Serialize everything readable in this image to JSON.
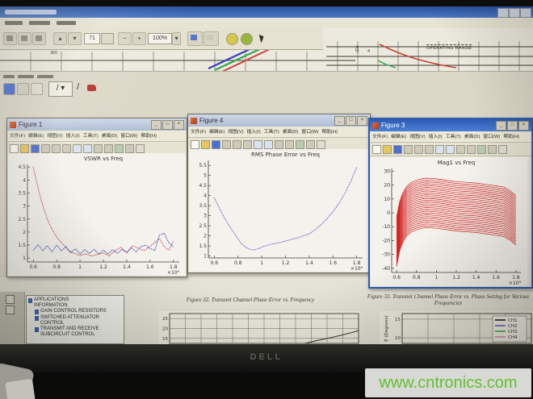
{
  "monitor": {
    "brand": "DELL"
  },
  "watermark": {
    "text": "www.cntronics.com"
  },
  "chrome": {
    "minimize": "_",
    "maximize": "□",
    "close": "×"
  },
  "pdf_reader": {
    "toolbar": {
      "page_value": "71",
      "zoom_value": "100%",
      "zoom_dropdown": "▾",
      "up_glyph": "▴",
      "down_glyph": "▾",
      "minus_glyph": "−",
      "plus_glyph": "+"
    },
    "doc_top": {
      "tick_label_left": "360",
      "rotated_axis_label": "(De",
      "axis_tick": "4",
      "operating_range": "OPERATING RANGE"
    },
    "bookmarks_root": "APPLICATIONS INFORMATION",
    "bookmarks_children": [
      "GAIN CONTROL RESISTORS",
      "SWITCHED ATTENUATOR CONTROL",
      "TRANSMIT AND RECEIVE SUBCIRCUIT CONTROL"
    ],
    "caption32": "Figure 32. Transmit Channel Phase Error vs. Frequency",
    "caption33": "Figure 33. Transmit Channel Phase Error vs. Phase Setting for Various Frequencies"
  },
  "matlab_menus": [
    "文件(F)",
    "编辑(E)",
    "视图(V)",
    "插入(I)",
    "工具(T)",
    "桌面(D)",
    "窗口(W)",
    "帮助(H)"
  ],
  "figure_windows": [
    {
      "title": "Figure 1"
    },
    {
      "title": "Figure 4"
    },
    {
      "title": "Figure 3"
    }
  ],
  "chart_data": [
    {
      "id": "vswr",
      "type": "line",
      "title": "VSWR vs Freq",
      "xlim": [
        0.55,
        1.85
      ],
      "ylim": [
        0.85,
        4.6
      ],
      "xticks": [
        0.6,
        0.8,
        1,
        1.2,
        1.4,
        1.6,
        1.8
      ],
      "xtick_labels": [
        "0.6",
        "0.8",
        "1",
        "1.2",
        "1.4",
        "1.6",
        "1.8"
      ],
      "yticks": [
        1,
        1.5,
        2,
        2.5,
        3,
        3.5,
        4,
        4.5
      ],
      "ytick_labels": [
        "1",
        "1.5",
        "2",
        "2.5",
        "3",
        "3.5",
        "4",
        "4.5"
      ],
      "x_exponent": "×10⁹",
      "grid": false,
      "box": false,
      "series": [
        {
          "name": "vswr-red",
          "color": "#c42626",
          "width": 1,
          "dash": "1,1",
          "x": [
            0.6,
            0.63,
            0.66,
            0.69,
            0.72,
            0.75,
            0.78,
            0.81,
            0.84,
            0.87,
            0.9,
            0.95,
            1.0,
            1.05,
            1.1,
            1.15,
            1.2,
            1.25,
            1.3,
            1.35,
            1.4,
            1.45,
            1.5,
            1.55,
            1.6,
            1.64,
            1.68,
            1.72,
            1.76,
            1.8
          ],
          "y": [
            4.5,
            3.9,
            3.35,
            2.9,
            2.5,
            2.2,
            1.95,
            1.75,
            1.6,
            1.45,
            1.3,
            1.18,
            1.1,
            1.16,
            1.08,
            1.14,
            1.2,
            1.08,
            1.28,
            1.42,
            1.22,
            1.48,
            1.38,
            1.28,
            1.45,
            1.6,
            1.75,
            1.45,
            1.3,
            1.65
          ]
        },
        {
          "name": "vswr-blue",
          "color": "#2626bb",
          "width": 1,
          "dash": "1,1",
          "x": [
            0.6,
            0.64,
            0.68,
            0.72,
            0.76,
            0.8,
            0.84,
            0.88,
            0.92,
            0.96,
            1.0,
            1.04,
            1.08,
            1.12,
            1.16,
            1.2,
            1.24,
            1.28,
            1.32,
            1.36,
            1.4,
            1.44,
            1.48,
            1.52,
            1.56,
            1.6,
            1.64,
            1.68,
            1.72,
            1.76,
            1.8
          ],
          "y": [
            1.3,
            1.52,
            1.28,
            1.48,
            1.24,
            1.5,
            1.28,
            1.44,
            1.2,
            1.36,
            1.16,
            1.32,
            1.18,
            1.34,
            1.16,
            1.3,
            1.16,
            1.32,
            1.18,
            1.34,
            1.2,
            1.4,
            1.24,
            1.44,
            1.5,
            1.36,
            1.3,
            1.88,
            1.95,
            1.6,
            1.42
          ]
        }
      ]
    },
    {
      "id": "rms_phase",
      "type": "line",
      "title": "RMS Phase Error vs Freq",
      "xlim": [
        0.55,
        1.85
      ],
      "ylim": [
        0.9,
        5.75
      ],
      "xticks": [
        0.6,
        0.8,
        1,
        1.2,
        1.4,
        1.6,
        1.8
      ],
      "xtick_labels": [
        "0.6",
        "0.8",
        "1",
        "1.2",
        "1.4",
        "1.6",
        "1.8"
      ],
      "yticks": [
        1,
        1.5,
        2,
        2.5,
        3,
        3.5,
        4,
        4.5,
        5,
        5.5
      ],
      "ytick_labels": [
        "1",
        "1.5",
        "2",
        "2.5",
        "3",
        "3.5",
        "4",
        "4.5",
        "5",
        "5.5"
      ],
      "x_exponent": "×10⁹",
      "grid": false,
      "box": false,
      "series": [
        {
          "name": "rms-error",
          "color": "#5a4fd0",
          "width": 1,
          "dash": "1.2,1",
          "x": [
            0.6,
            0.64,
            0.68,
            0.72,
            0.76,
            0.8,
            0.83,
            0.86,
            0.9,
            0.94,
            0.98,
            1.02,
            1.06,
            1.1,
            1.15,
            1.2,
            1.25,
            1.3,
            1.35,
            1.4,
            1.45,
            1.5,
            1.55,
            1.6,
            1.65,
            1.7,
            1.75,
            1.8
          ],
          "y": [
            3.9,
            3.4,
            2.95,
            2.55,
            2.2,
            1.85,
            1.6,
            1.45,
            1.32,
            1.3,
            1.38,
            1.48,
            1.55,
            1.6,
            1.66,
            1.74,
            1.82,
            1.9,
            2.0,
            2.1,
            2.3,
            2.55,
            2.85,
            3.2,
            3.6,
            4.1,
            4.7,
            5.4
          ]
        }
      ]
    },
    {
      "id": "mag1",
      "type": "line",
      "title": "Mag1 vs Freq",
      "xlim": [
        0.55,
        1.85
      ],
      "ylim": [
        -43,
        32
      ],
      "xticks": [
        0.6,
        0.8,
        1,
        1.2,
        1.4,
        1.6,
        1.8
      ],
      "xtick_labels": [
        "0.6",
        "0.8",
        "1",
        "1.2",
        "1.4",
        "1.6",
        "1.8"
      ],
      "yticks": [
        -40,
        -30,
        -20,
        -10,
        0,
        10,
        20,
        30
      ],
      "ytick_labels": [
        "-40",
        "-30",
        "-20",
        "-10",
        "0",
        "10",
        "20",
        "30"
      ],
      "x_exponent": "×10⁹",
      "grid": false,
      "box": false,
      "series": [
        {
          "name": "attenuation-states",
          "color": "#d22020",
          "width": 0.7,
          "repeat": 28,
          "offset_step": -1.32,
          "x": [
            0.6,
            0.63,
            0.66,
            0.7,
            0.75,
            0.8,
            0.85,
            0.9,
            1.0,
            1.1,
            1.2,
            1.3,
            1.4,
            1.5,
            1.6,
            1.68,
            1.74,
            1.8
          ],
          "y": [
            -3,
            8,
            14,
            19,
            22,
            23.5,
            24.5,
            25,
            24.5,
            23.5,
            22.5,
            22,
            21.5,
            20.5,
            19.5,
            18.5,
            16,
            12.5
          ]
        }
      ]
    },
    {
      "id": "fig32",
      "type": "line",
      "grid": true,
      "box": true,
      "grid_color": "#6b695e",
      "tick_font": 5.5,
      "xlim": [
        0,
        12
      ],
      "ylim": [
        12.5,
        27.5
      ],
      "xticks": [
        0,
        1,
        2,
        3,
        4,
        5,
        6,
        7,
        8,
        9,
        10,
        11,
        12
      ],
      "yticks": [
        15,
        20,
        25
      ],
      "ytick_labels": [
        "15",
        "20",
        "25"
      ],
      "series": [
        {
          "name": "phase-error-trace",
          "color": "#3c3c38",
          "width": 1.1,
          "x": [
            8.6,
            9.4,
            10.2,
            11.0,
            11.7,
            12
          ],
          "y": [
            12.5,
            14,
            15.3,
            16.8,
            18.2,
            19
          ]
        }
      ]
    },
    {
      "id": "fig33",
      "type": "line",
      "grid": true,
      "box": true,
      "grid_color": "#6b695e",
      "tick_font": 5.5,
      "xlim": [
        0,
        5
      ],
      "ylim": [
        8.5,
        16.5
      ],
      "xticks": [
        0,
        1,
        2,
        3,
        4,
        5
      ],
      "yticks": [
        10,
        15
      ],
      "ytick_labels": [
        "10",
        "15"
      ],
      "ylabel": "E (Degrees)",
      "legend": [
        {
          "label": "CH1",
          "color": "#1c1c1c"
        },
        {
          "label": "CH2",
          "color": "#6f5bd4"
        },
        {
          "label": "CH3",
          "color": "#3dae49"
        },
        {
          "label": "CH4",
          "color": "#e289ae"
        }
      ],
      "series": []
    }
  ]
}
